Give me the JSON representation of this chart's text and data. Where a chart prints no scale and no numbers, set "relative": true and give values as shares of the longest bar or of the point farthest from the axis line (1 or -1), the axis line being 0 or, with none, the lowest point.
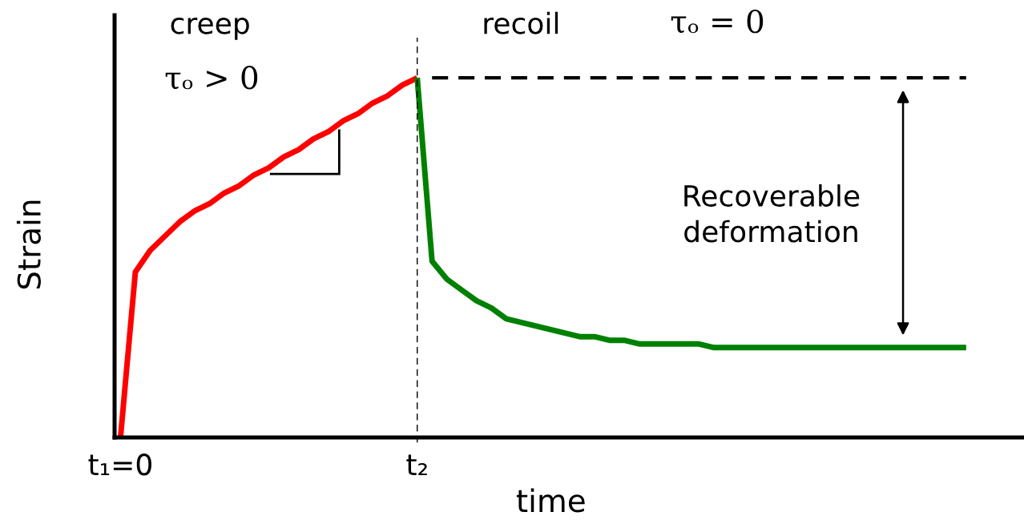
{
  "chart_data": {
    "type": "line",
    "relative": true,
    "xlabel": "time",
    "ylabel": "Strain",
    "categories": [
      "t₁=0",
      null,
      null,
      null,
      null,
      null,
      null,
      null,
      null,
      null,
      null,
      null,
      null,
      null,
      null,
      null,
      null,
      null,
      null,
      null,
      "t₂",
      null,
      null,
      null,
      null,
      null,
      null,
      null,
      null,
      null,
      null,
      null,
      null,
      null,
      null,
      null,
      null,
      null,
      null,
      null,
      null,
      null,
      null,
      null,
      null,
      null,
      null,
      null,
      null,
      null,
      null,
      null,
      null,
      null,
      null,
      null,
      null,
      null
    ],
    "tick_labels": "x",
    "grid": false,
    "line_style": "solid",
    "series": [
      {
        "color": "#ff0000",
        "values": [
          0,
          0.46,
          0.52,
          0.56,
          0.6,
          0.63,
          0.65,
          0.68,
          0.7,
          0.73,
          0.75,
          0.78,
          0.8,
          0.83,
          0.85,
          0.88,
          0.9,
          0.93,
          0.95,
          0.98,
          1.0,
          null,
          null,
          null,
          null,
          null,
          null,
          null,
          null,
          null,
          null,
          null,
          null,
          null,
          null,
          null,
          null,
          null,
          null,
          null,
          null,
          null,
          null,
          null,
          null,
          null,
          null,
          null,
          null,
          null,
          null,
          null,
          null,
          null,
          null,
          null,
          null,
          null
        ]
      },
      {
        "color": "#008000",
        "values": [
          null,
          null,
          null,
          null,
          null,
          null,
          null,
          null,
          null,
          null,
          null,
          null,
          null,
          null,
          null,
          null,
          null,
          null,
          null,
          null,
          1.0,
          0.49,
          0.44,
          0.41,
          0.38,
          0.36,
          0.33,
          0.32,
          0.31,
          0.3,
          0.29,
          0.28,
          0.28,
          0.27,
          0.27,
          0.26,
          0.26,
          0.26,
          0.26,
          0.26,
          0.25,
          0.25,
          0.25,
          0.25,
          0.25,
          0.25,
          0.25,
          0.25,
          0.25,
          0.25,
          0.25,
          0.25,
          0.25,
          0.25,
          0.25,
          0.25,
          0.25,
          0.25
        ]
      },
      {
        "color": "#000000",
        "line_style": "dashed",
        "values": [
          null,
          null,
          null,
          null,
          null,
          null,
          null,
          null,
          null,
          null,
          null,
          null,
          null,
          null,
          null,
          null,
          null,
          null,
          null,
          null,
          null,
          1.0,
          1.0,
          1.0,
          1.0,
          1.0,
          1.0,
          1.0,
          1.0,
          1.0,
          1.0,
          1.0,
          1.0,
          1.0,
          1.0,
          1.0,
          1.0,
          1.0,
          1.0,
          1.0,
          1.0,
          1.0,
          1.0,
          1.0,
          1.0,
          1.0,
          1.0,
          1.0,
          1.0,
          1.0,
          1.0,
          1.0,
          1.0,
          1.0,
          1.0,
          1.0,
          1.0,
          1.0
        ]
      }
    ],
    "ref_lines": [
      {
        "axis": "x",
        "value": "t₂",
        "color": "#000000",
        "line_style": "dashed"
      }
    ],
    "annotations": [
      "creep",
      "τₒ > 0",
      "recoil",
      "τₒ = 0",
      "Recoverable\ndeformation"
    ]
  }
}
